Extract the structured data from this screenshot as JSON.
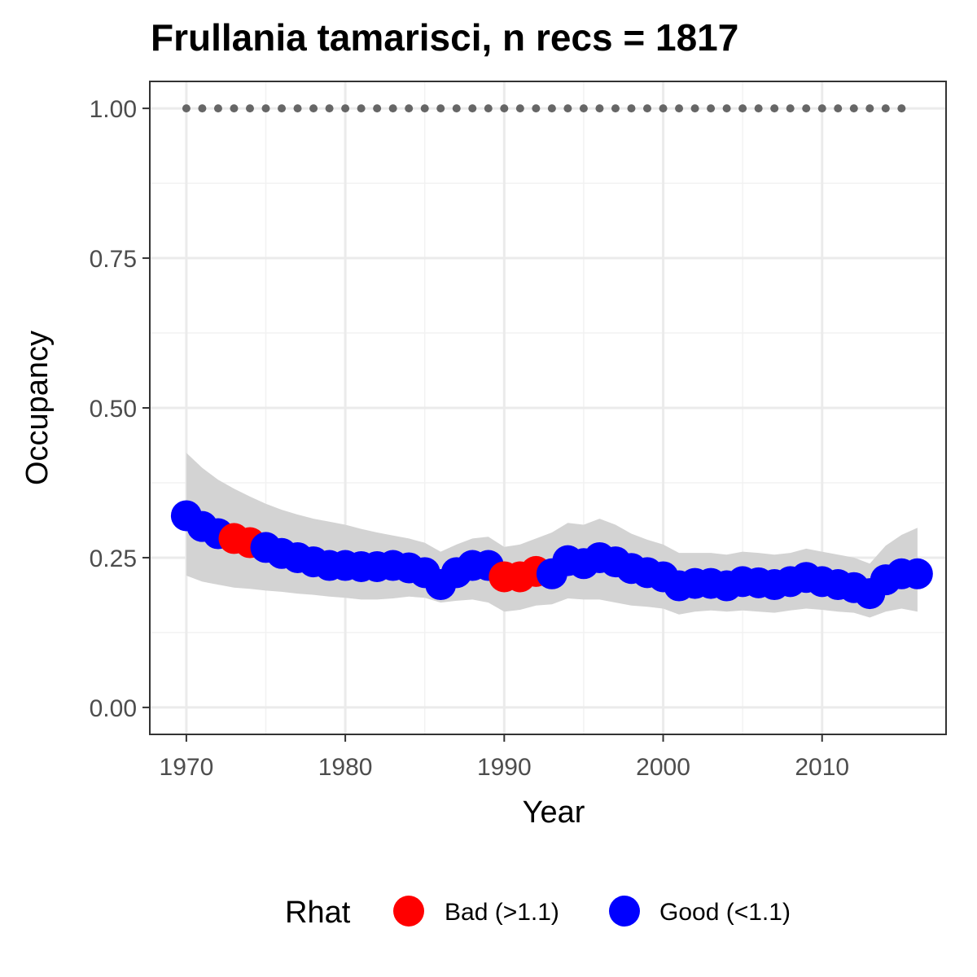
{
  "chart_data": {
    "type": "scatter",
    "title": "Frullania tamarisci, n recs = 1817",
    "xlabel": "Year",
    "ylabel": "Occupancy",
    "xlim": [
      1967.7,
      2017.8
    ],
    "ylim": [
      -0.045,
      1.045
    ],
    "x_ticks": [
      1970,
      1980,
      1990,
      2000,
      2010
    ],
    "x_tick_labels": [
      "1970",
      "1980",
      "1990",
      "2000",
      "2010"
    ],
    "y_ticks": [
      0.0,
      0.25,
      0.5,
      0.75,
      1.0
    ],
    "y_tick_labels": [
      "0.00",
      "0.25",
      "0.50",
      "0.75",
      "1.00"
    ],
    "grid": true,
    "legend": {
      "title": "Rhat",
      "position": "bottom",
      "entries": [
        {
          "label": "Bad (>1.1)",
          "color": "#ff0000"
        },
        {
          "label": "Good (<1.1)",
          "color": "#0000ff"
        }
      ]
    },
    "colors": {
      "bad": "#ff0000",
      "good": "#0000ff",
      "ribbon": "#d3d3d3",
      "reference": "#666666"
    },
    "series": [
      {
        "name": "Occupancy",
        "x": [
          1970,
          1971,
          1972,
          1973,
          1974,
          1975,
          1976,
          1977,
          1978,
          1979,
          1980,
          1981,
          1982,
          1983,
          1984,
          1985,
          1986,
          1987,
          1988,
          1989,
          1990,
          1991,
          1992,
          1993,
          1994,
          1995,
          1996,
          1997,
          1998,
          1999,
          2000,
          2001,
          2002,
          2003,
          2004,
          2005,
          2006,
          2007,
          2008,
          2009,
          2010,
          2011,
          2012,
          2013,
          2014,
          2015,
          2016
        ],
        "y": [
          0.32,
          0.302,
          0.29,
          0.282,
          0.275,
          0.267,
          0.257,
          0.25,
          0.243,
          0.237,
          0.237,
          0.235,
          0.235,
          0.237,
          0.233,
          0.225,
          0.205,
          0.225,
          0.237,
          0.237,
          0.218,
          0.218,
          0.227,
          0.223,
          0.245,
          0.24,
          0.25,
          0.243,
          0.232,
          0.225,
          0.218,
          0.203,
          0.207,
          0.207,
          0.203,
          0.21,
          0.208,
          0.205,
          0.21,
          0.217,
          0.21,
          0.205,
          0.2,
          0.19,
          0.213,
          0.223,
          0.223
        ],
        "rhat": [
          "Good",
          "Good",
          "Good",
          "Bad",
          "Bad",
          "Good",
          "Good",
          "Good",
          "Good",
          "Good",
          "Good",
          "Good",
          "Good",
          "Good",
          "Good",
          "Good",
          "Good",
          "Good",
          "Good",
          "Good",
          "Bad",
          "Bad",
          "Bad",
          "Good",
          "Good",
          "Good",
          "Good",
          "Good",
          "Good",
          "Good",
          "Good",
          "Good",
          "Good",
          "Good",
          "Good",
          "Good",
          "Good",
          "Good",
          "Good",
          "Good",
          "Good",
          "Good",
          "Good",
          "Good",
          "Good",
          "Good",
          "Good"
        ],
        "lower": [
          0.22,
          0.21,
          0.205,
          0.2,
          0.198,
          0.195,
          0.193,
          0.19,
          0.188,
          0.185,
          0.183,
          0.18,
          0.18,
          0.182,
          0.185,
          0.183,
          0.175,
          0.178,
          0.18,
          0.175,
          0.16,
          0.163,
          0.17,
          0.172,
          0.182,
          0.18,
          0.18,
          0.175,
          0.17,
          0.168,
          0.165,
          0.155,
          0.16,
          0.162,
          0.16,
          0.162,
          0.16,
          0.158,
          0.162,
          0.165,
          0.163,
          0.16,
          0.158,
          0.15,
          0.16,
          0.165,
          0.16
        ],
        "upper": [
          0.425,
          0.4,
          0.38,
          0.365,
          0.352,
          0.34,
          0.33,
          0.322,
          0.315,
          0.31,
          0.305,
          0.298,
          0.292,
          0.287,
          0.282,
          0.275,
          0.26,
          0.272,
          0.282,
          0.285,
          0.268,
          0.272,
          0.282,
          0.292,
          0.308,
          0.305,
          0.315,
          0.305,
          0.29,
          0.28,
          0.272,
          0.258,
          0.258,
          0.258,
          0.255,
          0.26,
          0.258,
          0.255,
          0.258,
          0.265,
          0.26,
          0.255,
          0.25,
          0.24,
          0.27,
          0.288,
          0.3
        ]
      },
      {
        "name": "Reference",
        "x": [
          1970,
          1971,
          1972,
          1973,
          1974,
          1975,
          1976,
          1977,
          1978,
          1979,
          1980,
          1981,
          1982,
          1983,
          1984,
          1985,
          1986,
          1987,
          1988,
          1989,
          1990,
          1991,
          1992,
          1993,
          1994,
          1995,
          1996,
          1997,
          1998,
          1999,
          2000,
          2001,
          2002,
          2003,
          2004,
          2005,
          2006,
          2007,
          2008,
          2009,
          2010,
          2011,
          2012,
          2013,
          2014,
          2015
        ],
        "y": [
          1,
          1,
          1,
          1,
          1,
          1,
          1,
          1,
          1,
          1,
          1,
          1,
          1,
          1,
          1,
          1,
          1,
          1,
          1,
          1,
          1,
          1,
          1,
          1,
          1,
          1,
          1,
          1,
          1,
          1,
          1,
          1,
          1,
          1,
          1,
          1,
          1,
          1,
          1,
          1,
          1,
          1,
          1,
          1,
          1,
          1
        ]
      }
    ]
  }
}
